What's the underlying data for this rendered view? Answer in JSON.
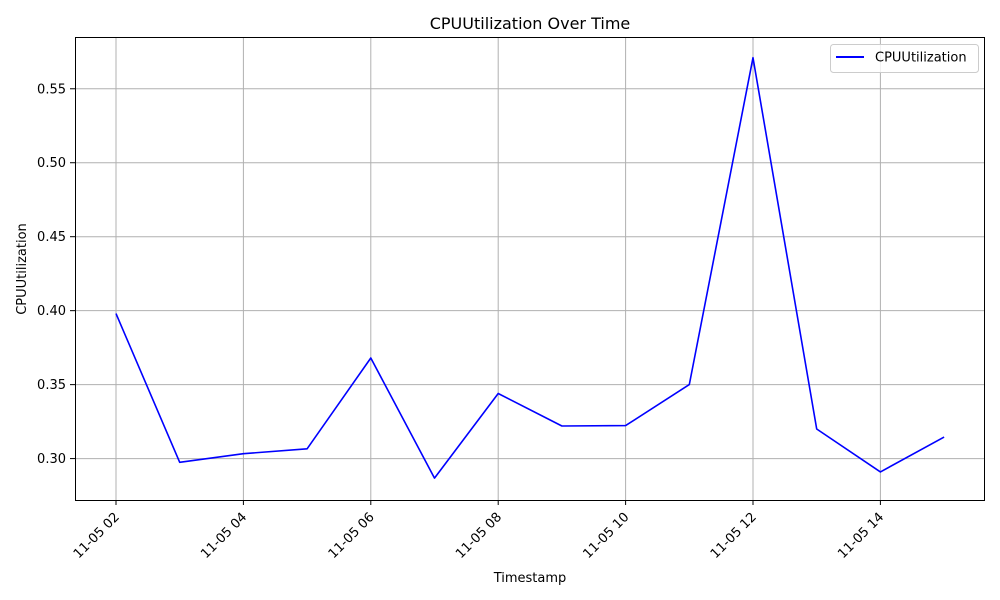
{
  "chart_data": {
    "type": "line",
    "title": "CPUUtilization Over Time",
    "xlabel": "Timestamp",
    "ylabel": "CPUUtilization",
    "x": [
      "11-05 02",
      "11-05 03",
      "11-05 04",
      "11-05 05",
      "11-05 06",
      "11-05 07",
      "11-05 08",
      "11-05 09",
      "11-05 10",
      "11-05 11",
      "11-05 12",
      "11-05 13",
      "11-05 14",
      "11-05 15"
    ],
    "x_ticks": [
      "11-05 02",
      "11-05 04",
      "11-05 06",
      "11-05 08",
      "11-05 10",
      "11-05 12",
      "11-05 14"
    ],
    "y_ticks": [
      "0.30",
      "0.35",
      "0.40",
      "0.45",
      "0.50",
      "0.55"
    ],
    "ylim": [
      0.272,
      0.585
    ],
    "grid": true,
    "legend": "top-right",
    "series": [
      {
        "name": "CPUUtilization",
        "color": "#0000ff",
        "values": [
          0.398,
          0.2975,
          0.3033,
          0.3066,
          0.368,
          0.2868,
          0.344,
          0.322,
          0.3223,
          0.35,
          0.571,
          0.32,
          0.291,
          0.3145
        ]
      }
    ]
  }
}
